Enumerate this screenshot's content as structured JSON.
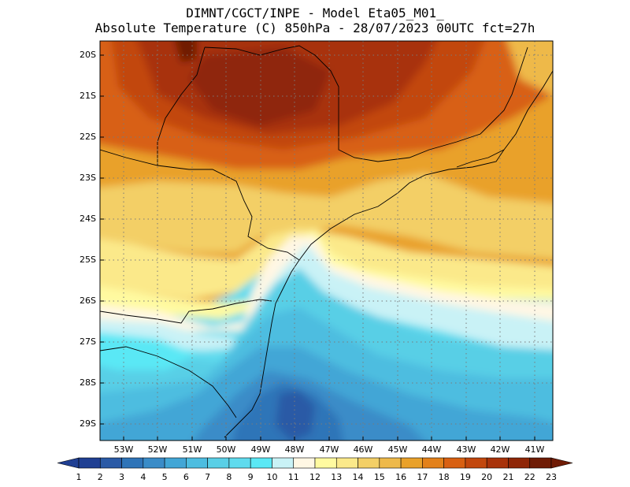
{
  "title": {
    "line1": "DIMNT/CGCT/INPE -  Model Eta05_M01_",
    "line2": "Absolute Temperature (C) 850hPa -  28/07/2023 00UTC fct=27h"
  },
  "map": {
    "lat_labels": [
      "20S",
      "21S",
      "22S",
      "23S",
      "24S",
      "25S",
      "26S",
      "27S",
      "28S",
      "29S"
    ],
    "lon_labels": [
      "53W",
      "52W",
      "51W",
      "50W",
      "49W",
      "48W",
      "47W",
      "46W",
      "45W",
      "44W",
      "43W",
      "42W",
      "41W"
    ]
  },
  "colorbar": {
    "labels": [
      "1",
      "2",
      "3",
      "4",
      "5",
      "6",
      "7",
      "8",
      "9",
      "10",
      "11",
      "12",
      "13",
      "14",
      "15",
      "16",
      "17",
      "18",
      "19",
      "20",
      "21",
      "22",
      "23"
    ],
    "colors": [
      "#1f3f93",
      "#2a5aa6",
      "#2f74b8",
      "#3a8cc8",
      "#42a6d6",
      "#4dbde0",
      "#59cfe6",
      "#5fdbee",
      "#5ae8f5",
      "#c9f2f6",
      "#fff7e4",
      "#fffaa0",
      "#fbe98a",
      "#f3cf66",
      "#eeb94a",
      "#e9a12a",
      "#e3811a",
      "#d86012",
      "#c2470d",
      "#a8320a",
      "#8f2607",
      "#6f1b05"
    ]
  }
}
